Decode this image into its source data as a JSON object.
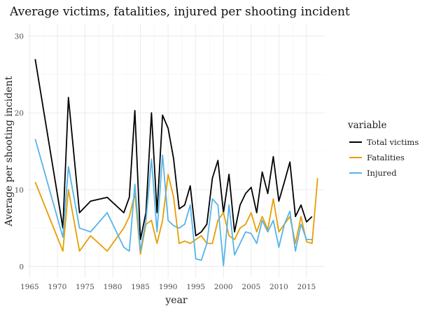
{
  "chart_data": {
    "type": "line",
    "title": "Average victims, fatalities, injured per shooting incident",
    "xlabel": "year",
    "ylabel": "Average per shooting incident",
    "xlim": [
      1964.7,
      2018.3
    ],
    "ylim": [
      -1.5,
      31.5
    ],
    "x_ticks": [
      1965,
      1970,
      1975,
      1980,
      1985,
      1990,
      1995,
      2000,
      2005,
      2010,
      2015
    ],
    "y_ticks": [
      0,
      10,
      20,
      30
    ],
    "grid": true,
    "legend": {
      "title": "variable",
      "position": "right",
      "entries": [
        "Total victims",
        "Fatalities",
        "Injured"
      ]
    },
    "series": [
      {
        "name": "Total victims",
        "color": "#000000",
        "points": [
          [
            1966,
            27
          ],
          [
            1971,
            5
          ],
          [
            1972,
            22
          ],
          [
            1974,
            7
          ],
          [
            1976,
            8.5
          ],
          [
            1979,
            9
          ],
          [
            1982,
            7
          ],
          [
            1983,
            9
          ],
          [
            1984,
            20.3
          ],
          [
            1985,
            3.5
          ],
          [
            1986,
            7
          ],
          [
            1987,
            20
          ],
          [
            1988,
            7
          ],
          [
            1989,
            19.7
          ],
          [
            1990,
            18
          ],
          [
            1991,
            14
          ],
          [
            1992,
            7.5
          ],
          [
            1993,
            8
          ],
          [
            1994,
            10.5
          ],
          [
            1995,
            4
          ],
          [
            1996,
            4.5
          ],
          [
            1997,
            5.5
          ],
          [
            1998,
            11.5
          ],
          [
            1999,
            13.8
          ],
          [
            2000,
            7
          ],
          [
            2001,
            12
          ],
          [
            2002,
            4.5
          ],
          [
            2003,
            8
          ],
          [
            2004,
            9.5
          ],
          [
            2005,
            10.3
          ],
          [
            2006,
            7
          ],
          [
            2007,
            12.3
          ],
          [
            2008,
            9.5
          ],
          [
            2009,
            14.3
          ],
          [
            2010,
            8.5
          ],
          [
            2011,
            11
          ],
          [
            2012,
            13.6
          ],
          [
            2013,
            6.5
          ],
          [
            2014,
            8
          ],
          [
            2015,
            5.8
          ],
          [
            2016,
            6.5
          ]
        ]
      },
      {
        "name": "Fatalities",
        "color": "#E69F00",
        "points": [
          [
            1966,
            11
          ],
          [
            1971,
            2
          ],
          [
            1972,
            10
          ],
          [
            1974,
            2
          ],
          [
            1976,
            4
          ],
          [
            1979,
            2
          ],
          [
            1982,
            5
          ],
          [
            1983,
            6.5
          ],
          [
            1984,
            9.5
          ],
          [
            1985,
            1.6
          ],
          [
            1986,
            5.5
          ],
          [
            1987,
            6
          ],
          [
            1988,
            3
          ],
          [
            1989,
            6
          ],
          [
            1990,
            12
          ],
          [
            1991,
            9
          ],
          [
            1992,
            3
          ],
          [
            1993,
            3.3
          ],
          [
            1994,
            3
          ],
          [
            1995,
            3.5
          ],
          [
            1996,
            4
          ],
          [
            1997,
            3
          ],
          [
            1998,
            3
          ],
          [
            1999,
            6
          ],
          [
            2000,
            7
          ],
          [
            2001,
            4
          ],
          [
            2002,
            3.5
          ],
          [
            2003,
            5
          ],
          [
            2004,
            5.5
          ],
          [
            2005,
            7
          ],
          [
            2006,
            4.5
          ],
          [
            2007,
            6.5
          ],
          [
            2008,
            4.8
          ],
          [
            2009,
            8.8
          ],
          [
            2010,
            4.5
          ],
          [
            2011,
            5.5
          ],
          [
            2012,
            6.5
          ],
          [
            2013,
            3
          ],
          [
            2014,
            6.5
          ],
          [
            2015,
            3.2
          ],
          [
            2016,
            3
          ],
          [
            2017,
            11.5
          ]
        ]
      },
      {
        "name": "Injured",
        "color": "#56B4E9",
        "points": [
          [
            1966,
            16.6
          ],
          [
            1971,
            3.8
          ],
          [
            1972,
            13
          ],
          [
            1974,
            5
          ],
          [
            1976,
            4.5
          ],
          [
            1979,
            7
          ],
          [
            1982,
            2.5
          ],
          [
            1983,
            2
          ],
          [
            1984,
            10.7
          ],
          [
            1985,
            2
          ],
          [
            1986,
            6
          ],
          [
            1987,
            14
          ],
          [
            1988,
            4.5
          ],
          [
            1989,
            14.5
          ],
          [
            1990,
            6
          ],
          [
            1991,
            5.3
          ],
          [
            1992,
            5
          ],
          [
            1993,
            5.5
          ],
          [
            1994,
            8
          ],
          [
            1995,
            1
          ],
          [
            1996,
            0.8
          ],
          [
            1997,
            3
          ],
          [
            1998,
            8.8
          ],
          [
            1999,
            8
          ],
          [
            2000,
            0.1
          ],
          [
            2001,
            8
          ],
          [
            2002,
            1.5
          ],
          [
            2003,
            3
          ],
          [
            2004,
            4.5
          ],
          [
            2005,
            4.3
          ],
          [
            2006,
            3
          ],
          [
            2007,
            6
          ],
          [
            2008,
            4.5
          ],
          [
            2009,
            6
          ],
          [
            2010,
            2.5
          ],
          [
            2011,
            5.5
          ],
          [
            2012,
            7.2
          ],
          [
            2013,
            2
          ],
          [
            2014,
            5.5
          ],
          [
            2015,
            3.5
          ],
          [
            2016,
            3.5
          ]
        ]
      }
    ]
  }
}
